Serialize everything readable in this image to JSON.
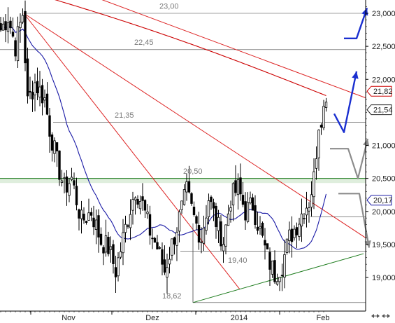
{
  "chart_data": {
    "type": "candlestick",
    "title": "",
    "xlabel": "",
    "ylabel": "",
    "ylim": [
      18.55,
      23.3
    ],
    "y_ticks": [
      "23,000",
      "22,500",
      "22,000",
      "21,000",
      "20,500",
      "20,000",
      "19,500",
      "19,000"
    ],
    "months": [
      "Nov",
      "Dez",
      "2014",
      "Feb"
    ],
    "levels": [
      {
        "value": 23.0,
        "label": "23,00"
      },
      {
        "value": 22.45,
        "label": "22,45"
      },
      {
        "value": 21.35,
        "label": "21,35"
      },
      {
        "value": 20.5,
        "label": "20,50"
      },
      {
        "value": 19.4,
        "label": "19,40"
      },
      {
        "value": 18.62,
        "label": "18,62"
      }
    ],
    "support_band": [
      20.43,
      20.5
    ],
    "price_tags": [
      {
        "value": 21.82,
        "label": "21,82",
        "color": "#cc0000"
      },
      {
        "value": 21.54,
        "label": "21,54",
        "color": "#222222"
      },
      {
        "value": 20.17,
        "label": "20,17",
        "color": "#1a1aa6"
      }
    ],
    "series": [
      {
        "name": "",
        "type": "sma",
        "color": "#1a1aa6"
      },
      {
        "name": "",
        "type": "sma",
        "color": "#cc0000"
      }
    ],
    "colors": {
      "candle": "#000000",
      "long_ma": "#cc0000",
      "short_ma": "#1a1aa6",
      "trend_down": "#dd2222",
      "trend_up": "#1a7a1a",
      "level_line": "#444444",
      "band": "#dfeedd",
      "arrow_up": "#1a2fd0",
      "arrow_alt": "#8c8c8c"
    },
    "scroll_icon_name": "scroll-arrows-icon"
  }
}
